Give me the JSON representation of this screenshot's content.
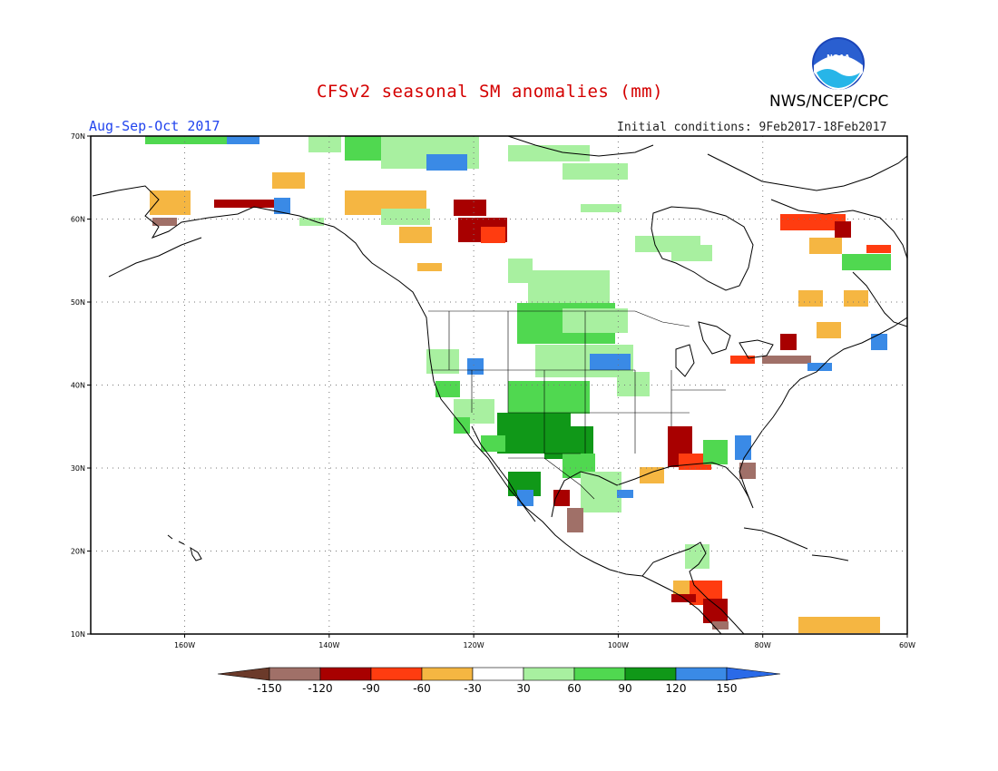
{
  "header": {
    "title": "CFSv2 seasonal SM anomalies (mm)",
    "agency": "NWS/NCEP/CPC",
    "season": "Aug-Sep-Oct 2017",
    "initial_conditions": "Initial conditions: 9Feb2017-18Feb2017",
    "logo_text": "NOAA"
  },
  "map": {
    "lon_range": [
      -173,
      -60
    ],
    "lat_range": [
      10,
      70
    ],
    "lon_ticks": [
      {
        "value": -160,
        "label": "160W"
      },
      {
        "value": -140,
        "label": "140W"
      },
      {
        "value": -120,
        "label": "120W"
      },
      {
        "value": -100,
        "label": "100W"
      },
      {
        "value": -80,
        "label": "80W"
      },
      {
        "value": -60,
        "label": "60W"
      }
    ],
    "lat_ticks": [
      {
        "value": 10,
        "label": "10N"
      },
      {
        "value": 20,
        "label": "20N"
      },
      {
        "value": 30,
        "label": "30N"
      },
      {
        "value": 40,
        "label": "40N"
      },
      {
        "value": 50,
        "label": "50N"
      },
      {
        "value": 60,
        "label": "60N"
      },
      {
        "value": 70,
        "label": "70N"
      }
    ],
    "grid": true
  },
  "colorbar": {
    "labels": [
      "-150",
      "-120",
      "-90",
      "-60",
      "-30",
      "30",
      "60",
      "90",
      "120",
      "150"
    ],
    "colors": [
      "#6b3a2a",
      "#a07068",
      "#a80000",
      "#ff3c10",
      "#f5b642",
      "#ffffff",
      "#a8f0a0",
      "#50d850",
      "#109818",
      "#3a8ae6",
      "#2a6ae8"
    ]
  }
}
